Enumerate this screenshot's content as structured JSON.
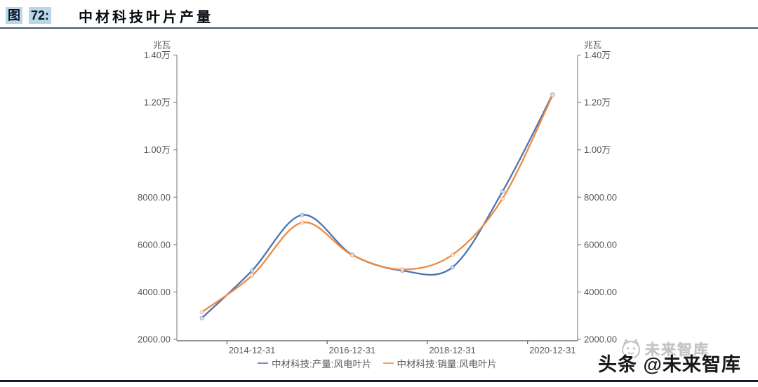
{
  "figure": {
    "label_prefix": "图",
    "number": "72:",
    "title": "中材科技叶片产量"
  },
  "watermark": {
    "light_text": "未来智库",
    "dark_text": "头条 @未来智库",
    "logo": "cat-face-circle"
  },
  "colors": {
    "chip_bg": "#b8d7e9",
    "header_text": "#0d1526",
    "rule_top": "#49566b",
    "rule_bottom": "#121a2b",
    "axis_line": "#8c8c8c",
    "tick_text": "#595959",
    "series_production": "#4e74b0",
    "series_sales": "#ee8b40",
    "watermark_light": "#bdbdbd",
    "watermark_dark": "#181818"
  },
  "chart_data": {
    "type": "line",
    "title": "中材科技叶片产量",
    "y_axis_unit": "兆瓦",
    "ylim": [
      2000,
      14000
    ],
    "y_ticks": {
      "values": [
        2000,
        4000,
        6000,
        8000,
        10000,
        12000,
        14000
      ],
      "labels": [
        "2000.00",
        "4000.00",
        "6000.00",
        "8000.00",
        "1.00万",
        "1.20万",
        "1.40万"
      ]
    },
    "categories": [
      "2013-12-31",
      "2014-12-31",
      "2015-12-31",
      "2016-12-31",
      "2017-12-31",
      "2018-12-31",
      "2019-12-31",
      "2020-12-31"
    ],
    "x_ticks": {
      "labels": [
        "2014-12-31",
        "2016-12-31",
        "2018-12-31",
        "2020-12-31"
      ],
      "category_indexes": [
        1,
        3,
        5,
        7
      ]
    },
    "smooth": true,
    "grid": false,
    "dual_y_axis": true,
    "legend_position": "bottom",
    "series": [
      {
        "name": "中材科技:产量:风电叶片",
        "color": "#4e74b0",
        "values": [
          2900,
          4900,
          7250,
          5570,
          4900,
          5040,
          8240,
          12340
        ]
      },
      {
        "name": "中材科技:销量:风电叶片",
        "color": "#ee8b40",
        "values": [
          3150,
          4690,
          6930,
          5560,
          4950,
          5570,
          7940,
          12300
        ]
      }
    ]
  }
}
